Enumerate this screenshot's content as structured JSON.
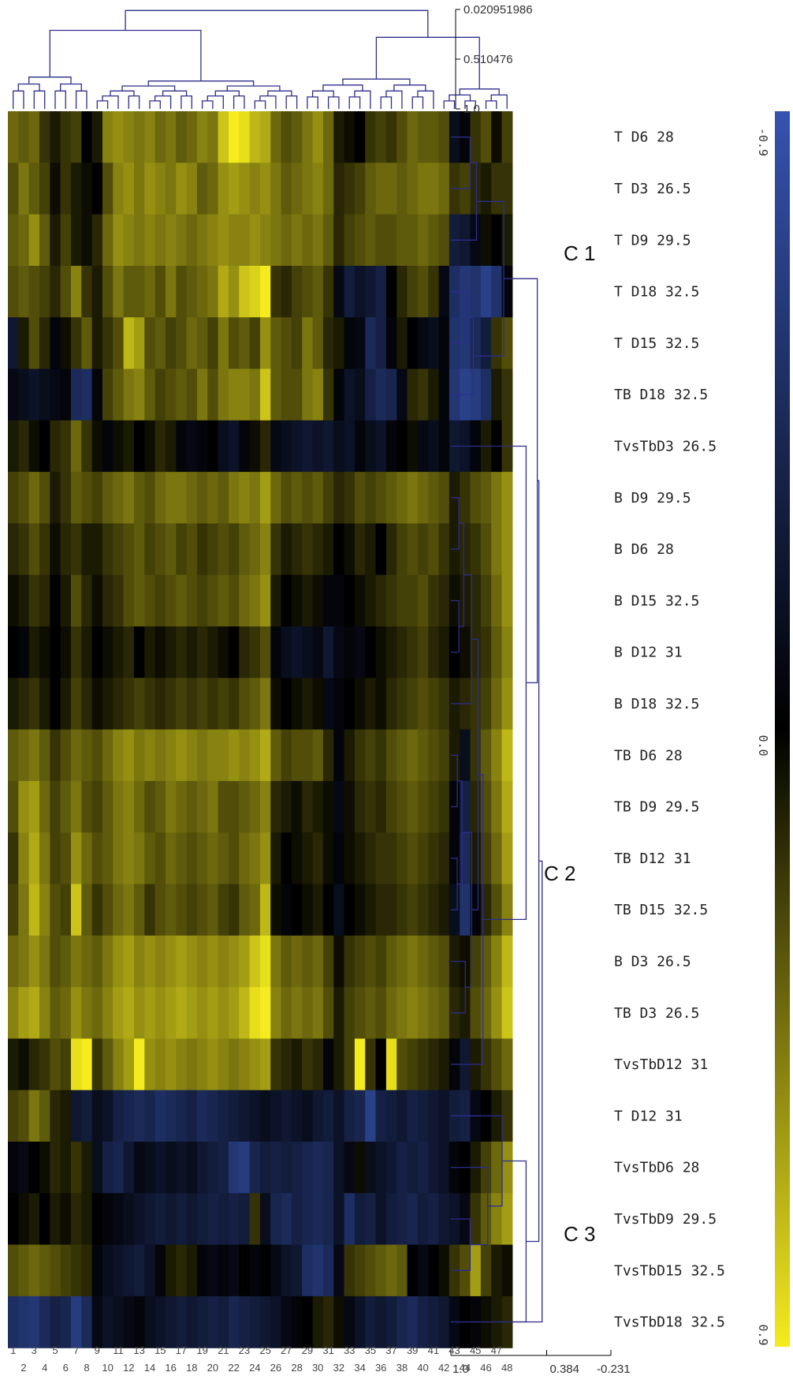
{
  "chart_data": {
    "type": "heatmap",
    "title": "",
    "rows": [
      "T D6 28",
      "T D3 26.5",
      "T D9 29.5",
      "T D18 32.5",
      "T D15 32.5",
      "TB D18 32.5",
      "TvsTbD3 26.5",
      "B D9 29.5",
      "B D6 28",
      "B D15 32.5",
      "B D12 31",
      "B D18 32.5",
      "TB D6 28",
      "TB D9 29.5",
      "TB D12 31",
      "TB D15 32.5",
      "B D3 26.5",
      "TB D3 26.5",
      "TvsTbD12 31",
      "T D12 31",
      "TvsTbD6 28",
      "TvsTbD9 29.5",
      "TvsTbD15 32.5",
      "TvsTbD18 32.5"
    ],
    "columns": [
      "1",
      "2",
      "3",
      "4",
      "5",
      "6",
      "7",
      "8",
      "9",
      "10",
      "11",
      "12",
      "13",
      "14",
      "15",
      "16",
      "17",
      "18",
      "19",
      "20",
      "21",
      "22",
      "23",
      "24",
      "25",
      "26",
      "27",
      "28",
      "29",
      "30",
      "31",
      "32",
      "33",
      "34",
      "35",
      "36",
      "37",
      "38",
      "39",
      "40",
      "41",
      "42",
      "43",
      "44",
      "45",
      "46",
      "47",
      "48"
    ],
    "values": [
      [
        -0.4,
        -0.35,
        -0.4,
        -0.2,
        -0.1,
        -0.2,
        -0.25,
        0.0,
        -0.1,
        -0.5,
        -0.55,
        -0.5,
        -0.45,
        -0.5,
        -0.4,
        -0.45,
        -0.35,
        -0.4,
        -0.5,
        -0.45,
        -0.75,
        -0.9,
        -0.85,
        -0.7,
        -0.65,
        -0.4,
        -0.3,
        -0.35,
        -0.45,
        -0.55,
        -0.4,
        -0.1,
        -0.05,
        0.0,
        -0.2,
        -0.25,
        -0.2,
        -0.3,
        -0.4,
        -0.35,
        -0.35,
        -0.3,
        0.15,
        0.05,
        -0.2,
        -0.3,
        -0.05,
        -0.25
      ],
      [
        -0.3,
        -0.45,
        -0.35,
        -0.25,
        -0.05,
        -0.2,
        -0.1,
        -0.05,
        0.0,
        -0.3,
        -0.5,
        -0.55,
        -0.45,
        -0.55,
        -0.5,
        -0.45,
        -0.55,
        -0.5,
        -0.35,
        -0.4,
        -0.55,
        -0.6,
        -0.55,
        -0.5,
        -0.55,
        -0.45,
        -0.35,
        -0.4,
        -0.45,
        -0.5,
        -0.4,
        -0.15,
        -0.2,
        -0.25,
        -0.35,
        -0.4,
        -0.4,
        -0.35,
        -0.4,
        -0.45,
        -0.45,
        -0.4,
        -0.2,
        -0.25,
        -0.15,
        -0.1,
        -0.2,
        -0.2
      ],
      [
        -0.35,
        -0.4,
        -0.55,
        -0.35,
        -0.1,
        -0.25,
        -0.1,
        -0.05,
        -0.15,
        -0.4,
        -0.55,
        -0.5,
        -0.45,
        -0.5,
        -0.45,
        -0.5,
        -0.45,
        -0.4,
        -0.45,
        -0.5,
        -0.55,
        -0.5,
        -0.5,
        -0.55,
        -0.5,
        -0.45,
        -0.4,
        -0.45,
        -0.4,
        -0.45,
        -0.35,
        -0.15,
        -0.25,
        -0.3,
        -0.35,
        -0.3,
        -0.3,
        -0.35,
        -0.35,
        -0.4,
        -0.35,
        -0.3,
        0.3,
        0.25,
        0.1,
        -0.05,
        0.0,
        -0.1
      ],
      [
        -0.3,
        -0.35,
        -0.3,
        -0.25,
        -0.15,
        -0.3,
        -0.5,
        -0.2,
        -0.1,
        -0.3,
        -0.45,
        -0.35,
        -0.35,
        -0.4,
        -0.3,
        -0.45,
        -0.3,
        -0.35,
        -0.4,
        -0.45,
        -0.65,
        -0.55,
        -0.75,
        -0.8,
        -0.9,
        -0.2,
        -0.15,
        -0.25,
        -0.3,
        -0.35,
        -0.2,
        0.1,
        0.3,
        0.2,
        0.25,
        0.35,
        0.0,
        -0.15,
        -0.25,
        -0.3,
        -0.2,
        0.1,
        0.5,
        0.6,
        0.55,
        0.7,
        0.55,
        0.05
      ],
      [
        0.25,
        -0.1,
        -0.3,
        -0.15,
        0.05,
        -0.05,
        -0.2,
        -0.35,
        -0.1,
        -0.2,
        -0.3,
        -0.7,
        -0.6,
        -0.3,
        -0.35,
        -0.25,
        -0.3,
        -0.4,
        -0.35,
        -0.25,
        -0.45,
        -0.3,
        -0.35,
        -0.25,
        -0.55,
        -0.35,
        -0.3,
        -0.25,
        -0.45,
        -0.35,
        -0.15,
        -0.1,
        0.05,
        0.1,
        0.45,
        0.35,
        0.05,
        -0.1,
        0.0,
        0.1,
        0.15,
        0.05,
        0.55,
        0.6,
        0.45,
        0.3,
        -0.2,
        -0.3
      ],
      [
        0.1,
        0.15,
        0.2,
        0.15,
        0.1,
        0.05,
        0.45,
        0.5,
        0.05,
        -0.25,
        -0.35,
        -0.45,
        -0.5,
        -0.35,
        -0.25,
        -0.3,
        -0.35,
        -0.3,
        -0.45,
        -0.3,
        -0.45,
        -0.5,
        -0.5,
        -0.45,
        -0.75,
        -0.35,
        -0.3,
        -0.3,
        -0.45,
        -0.5,
        -0.2,
        0.05,
        0.2,
        0.15,
        0.35,
        0.45,
        0.4,
        0.1,
        -0.15,
        -0.2,
        -0.1,
        0.05,
        0.6,
        0.7,
        0.65,
        0.5,
        -0.1,
        -0.2
      ],
      [
        -0.1,
        -0.15,
        -0.05,
        0.0,
        -0.15,
        -0.2,
        -0.4,
        -0.2,
        -0.05,
        0.05,
        -0.05,
        -0.1,
        0.0,
        -0.05,
        -0.15,
        -0.1,
        0.05,
        0.1,
        0.05,
        0.0,
        0.15,
        0.2,
        0.05,
        -0.05,
        -0.15,
        0.1,
        0.15,
        0.2,
        0.25,
        0.2,
        0.25,
        0.15,
        0.2,
        0.05,
        0.15,
        0.2,
        0.05,
        0.0,
        -0.05,
        0.1,
        0.15,
        0.05,
        0.25,
        0.2,
        0.05,
        -0.1,
        0.0,
        -0.2
      ],
      [
        -0.25,
        -0.3,
        -0.4,
        -0.3,
        -0.1,
        -0.2,
        -0.35,
        -0.3,
        -0.25,
        -0.35,
        -0.4,
        -0.45,
        -0.35,
        -0.3,
        -0.4,
        -0.45,
        -0.45,
        -0.4,
        -0.35,
        -0.4,
        -0.35,
        -0.45,
        -0.5,
        -0.45,
        -0.6,
        -0.4,
        -0.3,
        -0.35,
        -0.3,
        -0.35,
        -0.25,
        -0.15,
        -0.2,
        -0.3,
        -0.25,
        -0.3,
        -0.35,
        -0.4,
        -0.45,
        -0.4,
        -0.35,
        -0.3,
        -0.1,
        -0.2,
        -0.3,
        -0.35,
        -0.45,
        -0.55
      ],
      [
        -0.15,
        -0.2,
        -0.3,
        -0.2,
        -0.05,
        -0.15,
        -0.2,
        -0.1,
        -0.1,
        -0.2,
        -0.25,
        -0.3,
        -0.35,
        -0.25,
        -0.3,
        -0.35,
        -0.25,
        -0.3,
        -0.2,
        -0.25,
        -0.3,
        -0.25,
        -0.35,
        -0.4,
        -0.5,
        -0.2,
        -0.1,
        -0.15,
        -0.2,
        -0.15,
        -0.1,
        0.0,
        -0.05,
        -0.15,
        -0.1,
        0.0,
        -0.15,
        -0.25,
        -0.3,
        -0.25,
        -0.3,
        -0.2,
        -0.1,
        -0.15,
        -0.2,
        -0.3,
        -0.45,
        -0.55
      ],
      [
        -0.05,
        -0.1,
        -0.2,
        -0.15,
        0.0,
        -0.1,
        -0.3,
        -0.15,
        -0.05,
        -0.15,
        -0.2,
        -0.3,
        -0.35,
        -0.3,
        -0.25,
        -0.3,
        -0.35,
        -0.3,
        -0.25,
        -0.3,
        -0.35,
        -0.3,
        -0.4,
        -0.45,
        -0.55,
        -0.1,
        0.0,
        -0.05,
        -0.1,
        -0.05,
        0.05,
        0.05,
        0.0,
        -0.05,
        -0.1,
        -0.15,
        -0.2,
        -0.25,
        -0.25,
        -0.3,
        -0.2,
        -0.15,
        -0.05,
        -0.1,
        -0.15,
        -0.25,
        -0.4,
        -0.55
      ],
      [
        0.0,
        0.05,
        -0.1,
        -0.05,
        0.0,
        -0.05,
        -0.2,
        -0.1,
        0.0,
        -0.05,
        -0.1,
        -0.15,
        0.0,
        -0.1,
        -0.05,
        -0.1,
        -0.15,
        -0.1,
        -0.15,
        -0.1,
        -0.05,
        0.0,
        -0.15,
        -0.2,
        -0.3,
        0.05,
        0.15,
        0.2,
        0.15,
        0.1,
        0.25,
        0.1,
        0.05,
        0.1,
        0.0,
        -0.05,
        -0.1,
        -0.15,
        -0.2,
        -0.25,
        -0.15,
        -0.1,
        0.0,
        -0.05,
        -0.15,
        -0.2,
        -0.35,
        -0.5
      ],
      [
        -0.1,
        -0.15,
        -0.2,
        -0.1,
        0.0,
        -0.1,
        -0.25,
        -0.15,
        -0.05,
        -0.1,
        -0.15,
        -0.2,
        -0.25,
        -0.2,
        -0.15,
        -0.2,
        -0.25,
        -0.2,
        -0.25,
        -0.2,
        -0.25,
        -0.2,
        -0.3,
        -0.35,
        -0.45,
        -0.05,
        0.0,
        -0.05,
        -0.1,
        -0.05,
        0.1,
        0.05,
        0.0,
        -0.05,
        -0.1,
        -0.05,
        -0.15,
        -0.2,
        -0.25,
        -0.3,
        -0.25,
        -0.2,
        -0.1,
        -0.15,
        -0.2,
        -0.25,
        -0.4,
        -0.55
      ],
      [
        -0.35,
        -0.4,
        -0.45,
        -0.35,
        -0.2,
        -0.3,
        -0.4,
        -0.35,
        -0.3,
        -0.4,
        -0.5,
        -0.55,
        -0.45,
        -0.5,
        -0.45,
        -0.5,
        -0.55,
        -0.5,
        -0.45,
        -0.5,
        -0.5,
        -0.55,
        -0.5,
        -0.55,
        -0.65,
        -0.35,
        -0.25,
        -0.3,
        -0.3,
        -0.35,
        -0.15,
        0.05,
        -0.1,
        -0.2,
        -0.25,
        -0.2,
        -0.3,
        -0.35,
        -0.4,
        -0.35,
        -0.3,
        -0.25,
        -0.1,
        0.15,
        -0.2,
        -0.35,
        -0.5,
        -0.7
      ],
      [
        -0.3,
        -0.55,
        -0.6,
        -0.4,
        -0.25,
        -0.35,
        -0.45,
        -0.3,
        -0.25,
        -0.35,
        -0.45,
        -0.5,
        -0.4,
        -0.3,
        -0.35,
        -0.45,
        -0.4,
        -0.35,
        -0.4,
        -0.45,
        -0.3,
        -0.3,
        -0.35,
        -0.4,
        -0.5,
        -0.15,
        -0.1,
        -0.05,
        -0.15,
        -0.1,
        -0.05,
        0.1,
        -0.05,
        -0.15,
        -0.2,
        -0.15,
        -0.25,
        -0.3,
        -0.35,
        -0.3,
        -0.25,
        -0.2,
        0.05,
        0.35,
        -0.15,
        -0.3,
        -0.45,
        -0.65
      ],
      [
        -0.2,
        -0.5,
        -0.65,
        -0.45,
        -0.25,
        -0.3,
        -0.55,
        -0.4,
        -0.3,
        -0.35,
        -0.45,
        -0.5,
        -0.45,
        -0.35,
        -0.3,
        -0.4,
        -0.35,
        -0.3,
        -0.35,
        -0.4,
        -0.35,
        -0.3,
        -0.4,
        -0.45,
        -0.55,
        -0.1,
        0.0,
        -0.05,
        -0.1,
        -0.15,
        -0.05,
        0.05,
        -0.05,
        -0.1,
        -0.15,
        -0.2,
        -0.2,
        -0.25,
        -0.3,
        -0.25,
        -0.2,
        -0.15,
        0.05,
        0.45,
        -0.1,
        -0.25,
        -0.4,
        -0.6
      ],
      [
        -0.25,
        -0.45,
        -0.7,
        -0.5,
        -0.3,
        -0.25,
        -0.75,
        -0.35,
        -0.2,
        -0.3,
        -0.4,
        -0.45,
        -0.35,
        -0.2,
        -0.3,
        -0.35,
        -0.3,
        -0.25,
        -0.3,
        -0.35,
        -0.25,
        -0.2,
        -0.35,
        -0.4,
        -0.7,
        -0.05,
        0.05,
        0.0,
        -0.05,
        -0.1,
        0.0,
        0.15,
        0.0,
        -0.05,
        -0.1,
        -0.15,
        -0.15,
        -0.2,
        -0.25,
        -0.2,
        -0.15,
        -0.1,
        0.15,
        0.55,
        0.05,
        -0.15,
        -0.3,
        -0.5
      ],
      [
        -0.4,
        -0.45,
        -0.55,
        -0.45,
        -0.3,
        -0.35,
        -0.45,
        -0.4,
        -0.35,
        -0.45,
        -0.55,
        -0.6,
        -0.5,
        -0.55,
        -0.5,
        -0.55,
        -0.6,
        -0.55,
        -0.5,
        -0.55,
        -0.5,
        -0.55,
        -0.6,
        -0.75,
        -0.85,
        -0.45,
        -0.35,
        -0.4,
        -0.35,
        -0.4,
        -0.25,
        -0.05,
        -0.2,
        -0.25,
        -0.3,
        -0.25,
        -0.35,
        -0.4,
        -0.45,
        -0.4,
        -0.35,
        -0.3,
        -0.1,
        -0.05,
        -0.25,
        -0.35,
        -0.5,
        -0.7
      ],
      [
        -0.5,
        -0.6,
        -0.65,
        -0.5,
        -0.35,
        -0.4,
        -0.55,
        -0.45,
        -0.4,
        -0.5,
        -0.6,
        -0.65,
        -0.55,
        -0.6,
        -0.55,
        -0.6,
        -0.65,
        -0.6,
        -0.55,
        -0.6,
        -0.55,
        -0.6,
        -0.7,
        -0.85,
        -0.9,
        -0.5,
        -0.4,
        -0.45,
        -0.4,
        -0.45,
        -0.3,
        -0.1,
        -0.25,
        -0.3,
        -0.35,
        -0.3,
        -0.4,
        -0.45,
        -0.5,
        -0.45,
        -0.4,
        -0.35,
        -0.15,
        -0.1,
        -0.3,
        -0.4,
        -0.55,
        -0.75
      ],
      [
        -0.1,
        -0.05,
        -0.15,
        -0.2,
        -0.3,
        -0.25,
        -0.85,
        -0.9,
        -0.2,
        -0.35,
        -0.5,
        -0.6,
        -0.9,
        -0.55,
        -0.5,
        -0.55,
        -0.5,
        -0.45,
        -0.5,
        -0.55,
        -0.5,
        -0.45,
        -0.5,
        -0.55,
        -0.6,
        -0.2,
        -0.15,
        -0.1,
        -0.2,
        -0.15,
        0.05,
        -0.1,
        -0.25,
        -0.95,
        -0.2,
        0.0,
        -0.85,
        -0.3,
        -0.25,
        -0.2,
        -0.15,
        -0.1,
        0.05,
        0.25,
        -0.1,
        -0.2,
        -0.3,
        -0.4
      ],
      [
        -0.25,
        -0.3,
        -0.45,
        -0.35,
        -0.15,
        -0.1,
        0.25,
        0.3,
        0.15,
        0.2,
        0.35,
        0.4,
        0.45,
        0.4,
        0.5,
        0.45,
        0.4,
        0.35,
        0.45,
        0.4,
        0.35,
        0.3,
        0.25,
        0.2,
        0.15,
        0.2,
        0.25,
        0.2,
        0.15,
        0.25,
        0.3,
        0.2,
        0.35,
        0.4,
        0.7,
        0.35,
        0.3,
        0.25,
        0.35,
        0.3,
        0.25,
        0.2,
        0.3,
        0.35,
        0.1,
        0.0,
        -0.1,
        -0.2
      ],
      [
        0.05,
        0.1,
        0.0,
        -0.05,
        -0.15,
        -0.1,
        -0.2,
        -0.1,
        0.15,
        0.35,
        0.4,
        0.25,
        0.1,
        0.15,
        0.2,
        0.15,
        0.2,
        0.15,
        0.25,
        0.3,
        0.35,
        0.6,
        0.65,
        0.4,
        0.3,
        0.35,
        0.3,
        0.35,
        0.4,
        0.45,
        0.4,
        0.2,
        0.1,
        -0.05,
        0.15,
        0.2,
        0.25,
        0.35,
        0.3,
        0.35,
        0.25,
        0.2,
        0.05,
        0.0,
        -0.1,
        -0.25,
        -0.4,
        -0.55
      ],
      [
        0.0,
        -0.05,
        -0.1,
        0.0,
        -0.1,
        -0.05,
        -0.15,
        -0.1,
        0.0,
        0.05,
        0.1,
        0.15,
        0.2,
        0.25,
        0.3,
        0.25,
        0.3,
        0.25,
        0.3,
        0.35,
        0.3,
        0.35,
        0.3,
        -0.2,
        0.15,
        0.4,
        0.45,
        0.35,
        0.4,
        0.45,
        0.4,
        0.2,
        0.5,
        0.3,
        0.35,
        0.2,
        0.3,
        0.35,
        0.4,
        0.3,
        0.35,
        0.25,
        0.2,
        0.1,
        -0.2,
        -0.35,
        -0.5,
        -0.6
      ],
      [
        -0.3,
        -0.35,
        -0.4,
        -0.35,
        -0.3,
        -0.25,
        -0.2,
        -0.15,
        0.05,
        0.15,
        0.2,
        0.25,
        0.3,
        0.2,
        0.05,
        -0.1,
        -0.15,
        -0.1,
        0.05,
        0.1,
        0.05,
        0.1,
        0.0,
        0.05,
        0.0,
        0.1,
        0.2,
        0.25,
        0.5,
        0.55,
        0.45,
        0.1,
        -0.2,
        -0.25,
        -0.3,
        -0.35,
        -0.4,
        -0.35,
        0.0,
        0.1,
        0.0,
        -0.05,
        -0.2,
        -0.3,
        -0.6,
        -0.25,
        -0.1,
        -0.05
      ],
      [
        0.5,
        0.55,
        0.6,
        0.45,
        0.35,
        0.4,
        0.65,
        0.45,
        0.1,
        0.2,
        0.15,
        0.1,
        0.05,
        0.15,
        0.2,
        0.25,
        0.3,
        0.25,
        0.3,
        0.35,
        0.3,
        0.4,
        0.35,
        0.3,
        0.25,
        0.2,
        0.1,
        0.05,
        0.0,
        -0.1,
        -0.15,
        -0.05,
        0.1,
        0.2,
        0.3,
        0.25,
        0.3,
        0.4,
        0.45,
        0.35,
        0.3,
        0.25,
        0.1,
        0.0,
        0.05,
        -0.05,
        -0.1,
        -0.15
      ]
    ],
    "color_scale": {
      "min": -0.9,
      "mid": 0.0,
      "max": 0.9,
      "low_color": "#f5eb1e",
      "mid_color": "#000000",
      "high_color": "#3553b0"
    },
    "colorbar_labels": [
      "-0.9",
      "0.0",
      "0.9"
    ],
    "top_axis_labels": [
      "0.020951986",
      "0.510476",
      "1.0"
    ],
    "right_axis_labels": [
      "1.0",
      "0.384",
      "-0.231"
    ],
    "cluster_labels": [
      "C 1",
      "C 2",
      "C 3"
    ],
    "dendrogram_color": "#2d2d8c"
  }
}
